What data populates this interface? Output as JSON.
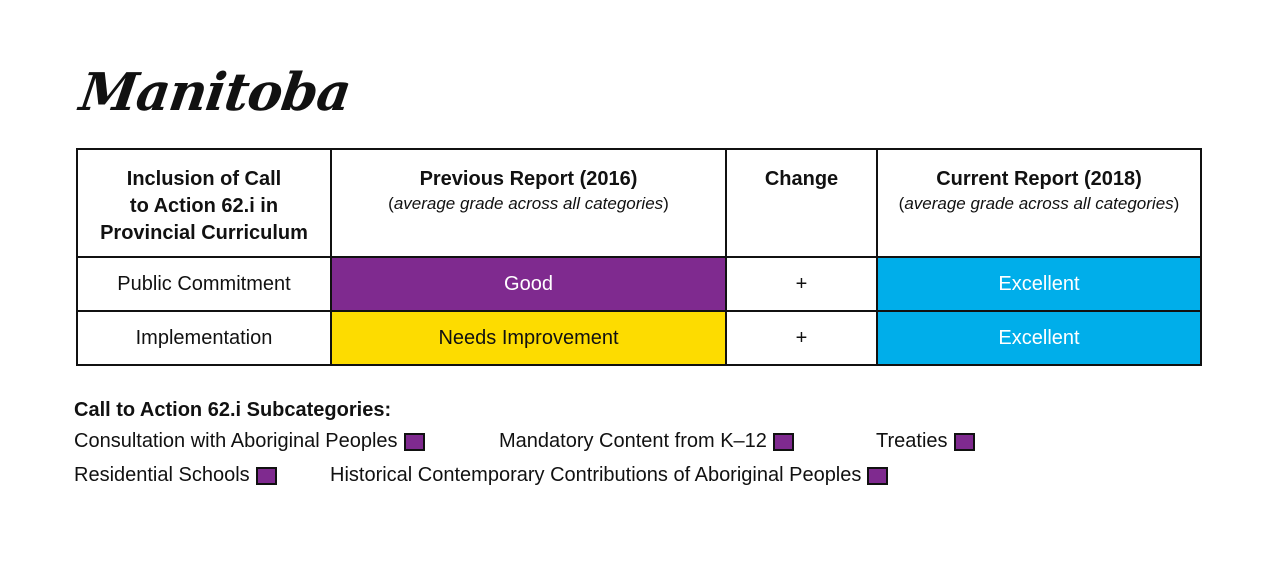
{
  "title": "Manitoba",
  "table": {
    "headers": {
      "col1": [
        "Inclusion of Call",
        "to Action 62.i in",
        "Provincial Curriculum"
      ],
      "col2_main": "Previous Report (2016)",
      "col2_sub": "average grade across all categories",
      "col3": "Change",
      "col4_main": "Current Report (2018)",
      "col4_sub": "average grade across all categories"
    },
    "rows": [
      {
        "label": "Public Commitment",
        "previous": "Good",
        "change": "+",
        "current": "Excellent"
      },
      {
        "label": "Implementation",
        "previous": "Needs Improvement",
        "change": "+",
        "current": "Excellent"
      }
    ]
  },
  "legend": {
    "title": "Call to Action 62.i Subcategories:",
    "items": [
      "Consultation with Aboriginal Peoples",
      "Mandatory Content from K–12",
      "Treaties",
      "Residential Schools",
      "Historical Contemporary Contributions of Aboriginal Peoples"
    ]
  },
  "colors": {
    "good": "#7f2a8f",
    "needs_improvement": "#fddc00",
    "excellent": "#00aeea",
    "legend_swatch": "#7f2a8f"
  }
}
